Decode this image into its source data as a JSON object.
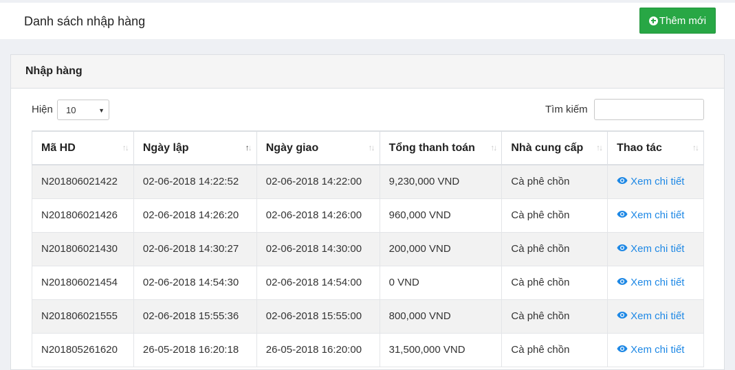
{
  "header": {
    "title": "Danh sách nhập hàng",
    "add_button_label": "Thêm mới"
  },
  "panel": {
    "title": "Nhập hàng",
    "length_label": "Hiện",
    "length_value": "10",
    "search_label": "Tìm kiếm",
    "search_value": ""
  },
  "table": {
    "columns": [
      "Mã HD",
      "Ngày lập",
      "Ngày giao",
      "Tổng thanh toán",
      "Nhà cung cấp",
      "Thao tác"
    ],
    "sorted_column": "Ngày lập",
    "rows": [
      {
        "code": "N201806021422",
        "created": "02-06-2018 14:22:52",
        "delivered": "02-06-2018 14:22:00",
        "total": "9,230,000 VND",
        "supplier": "Cà phê chồn",
        "action": "Xem chi tiết"
      },
      {
        "code": "N201806021426",
        "created": "02-06-2018 14:26:20",
        "delivered": "02-06-2018 14:26:00",
        "total": "960,000 VND",
        "supplier": "Cà phê chồn",
        "action": "Xem chi tiết"
      },
      {
        "code": "N201806021430",
        "created": "02-06-2018 14:30:27",
        "delivered": "02-06-2018 14:30:00",
        "total": "200,000 VND",
        "supplier": "Cà phê chồn",
        "action": "Xem chi tiết"
      },
      {
        "code": "N201806021454",
        "created": "02-06-2018 14:54:30",
        "delivered": "02-06-2018 14:54:00",
        "total": "0 VND",
        "supplier": "Cà phê chồn",
        "action": "Xem chi tiết"
      },
      {
        "code": "N201806021555",
        "created": "02-06-2018 15:55:36",
        "delivered": "02-06-2018 15:55:00",
        "total": "800,000 VND",
        "supplier": "Cà phê chồn",
        "action": "Xem chi tiết"
      },
      {
        "code": "N201805261620",
        "created": "26-05-2018 16:20:18",
        "delivered": "26-05-2018 16:20:00",
        "total": "31,500,000 VND",
        "supplier": "Cà phê chồn",
        "action": "Xem chi tiết"
      }
    ]
  },
  "colors": {
    "accent_green": "#28a745",
    "link_blue": "#1e88e5"
  },
  "icons": {
    "add": "plus-circle-icon",
    "view": "eye-icon",
    "sort": "sort-icon",
    "select": "caret-down-icon"
  }
}
